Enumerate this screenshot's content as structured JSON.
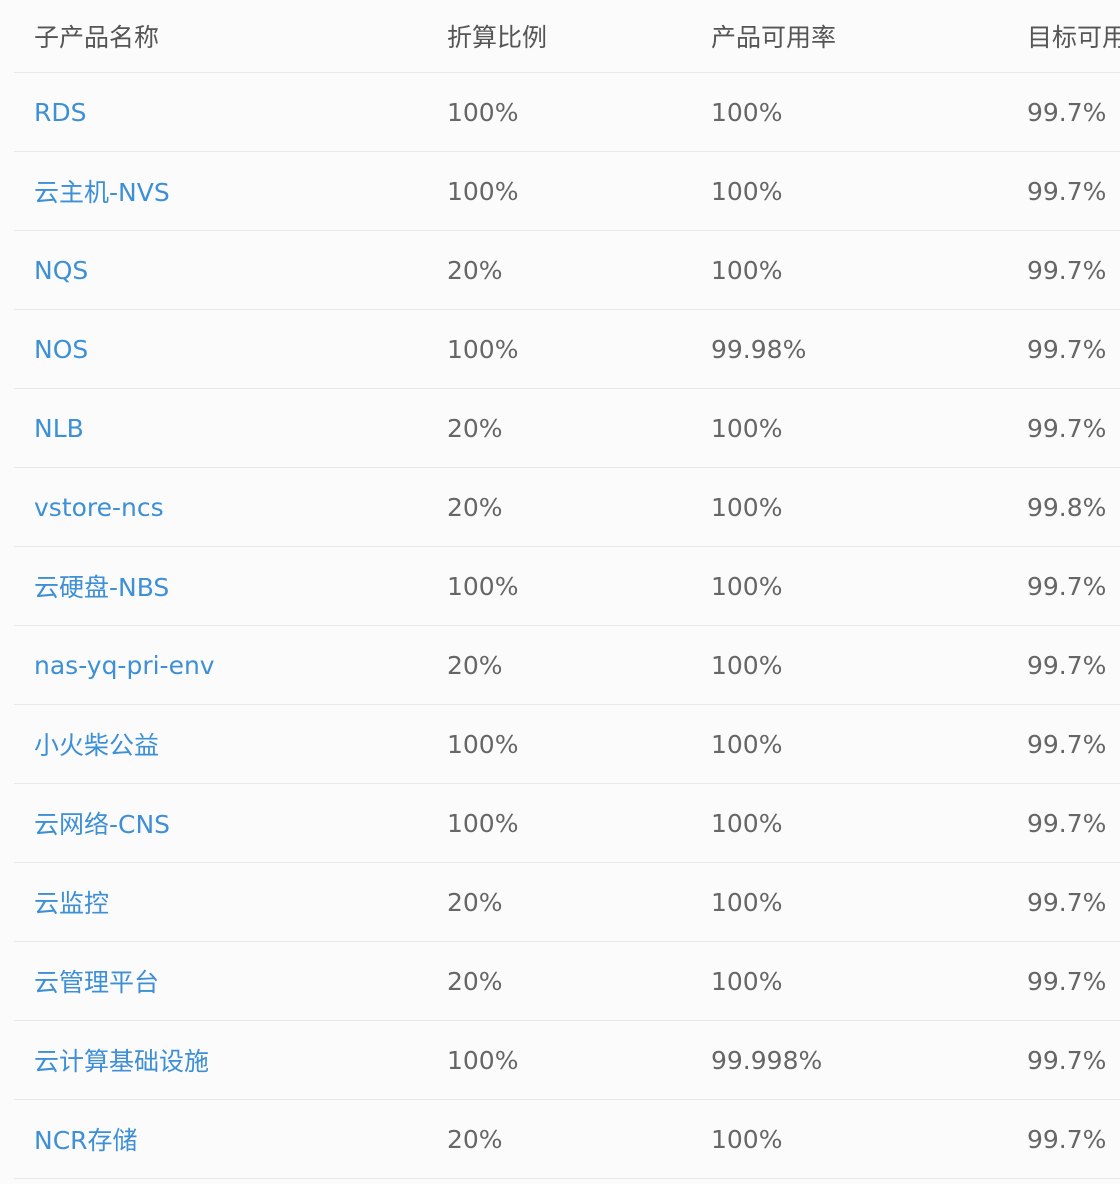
{
  "colors": {
    "link": "#3d8fd6",
    "text": "#666666",
    "header_text": "#555555",
    "divider": "#e9e9ec",
    "background": "#fbfbfc"
  },
  "table": {
    "headers": [
      "子产品名称",
      "折算比例",
      "产品可用率",
      "目标可用"
    ],
    "rows": [
      {
        "name": "RDS",
        "ratio": "100%",
        "availability": "100%",
        "target": "99.7%"
      },
      {
        "name": "云主机-NVS",
        "ratio": "100%",
        "availability": "100%",
        "target": "99.7%"
      },
      {
        "name": "NQS",
        "ratio": "20%",
        "availability": "100%",
        "target": "99.7%"
      },
      {
        "name": "NOS",
        "ratio": "100%",
        "availability": "99.98%",
        "target": "99.7%"
      },
      {
        "name": "NLB",
        "ratio": "20%",
        "availability": "100%",
        "target": "99.7%"
      },
      {
        "name": "vstore-ncs",
        "ratio": "20%",
        "availability": "100%",
        "target": "99.8%"
      },
      {
        "name": "云硬盘-NBS",
        "ratio": "100%",
        "availability": "100%",
        "target": "99.7%"
      },
      {
        "name": "nas-yq-pri-env",
        "ratio": "20%",
        "availability": "100%",
        "target": "99.7%"
      },
      {
        "name": "小火柴公益",
        "ratio": "100%",
        "availability": "100%",
        "target": "99.7%"
      },
      {
        "name": "云网络-CNS",
        "ratio": "100%",
        "availability": "100%",
        "target": "99.7%"
      },
      {
        "name": "云监控",
        "ratio": "20%",
        "availability": "100%",
        "target": "99.7%"
      },
      {
        "name": "云管理平台",
        "ratio": "20%",
        "availability": "100%",
        "target": "99.7%"
      },
      {
        "name": "云计算基础设施",
        "ratio": "100%",
        "availability": "99.998%",
        "target": "99.7%"
      },
      {
        "name": "NCR存储",
        "ratio": "20%",
        "availability": "100%",
        "target": "99.7%"
      }
    ]
  }
}
